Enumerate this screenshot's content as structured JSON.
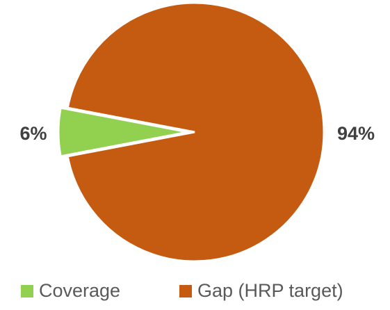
{
  "chart_data": {
    "type": "pie",
    "categories": [
      "Coverage",
      "Gap (HRP target)"
    ],
    "values": [
      6,
      94
    ],
    "value_labels": [
      "6%",
      "94%"
    ],
    "colors": [
      "#92d050",
      "#c55a11"
    ],
    "legend": "bottom"
  }
}
